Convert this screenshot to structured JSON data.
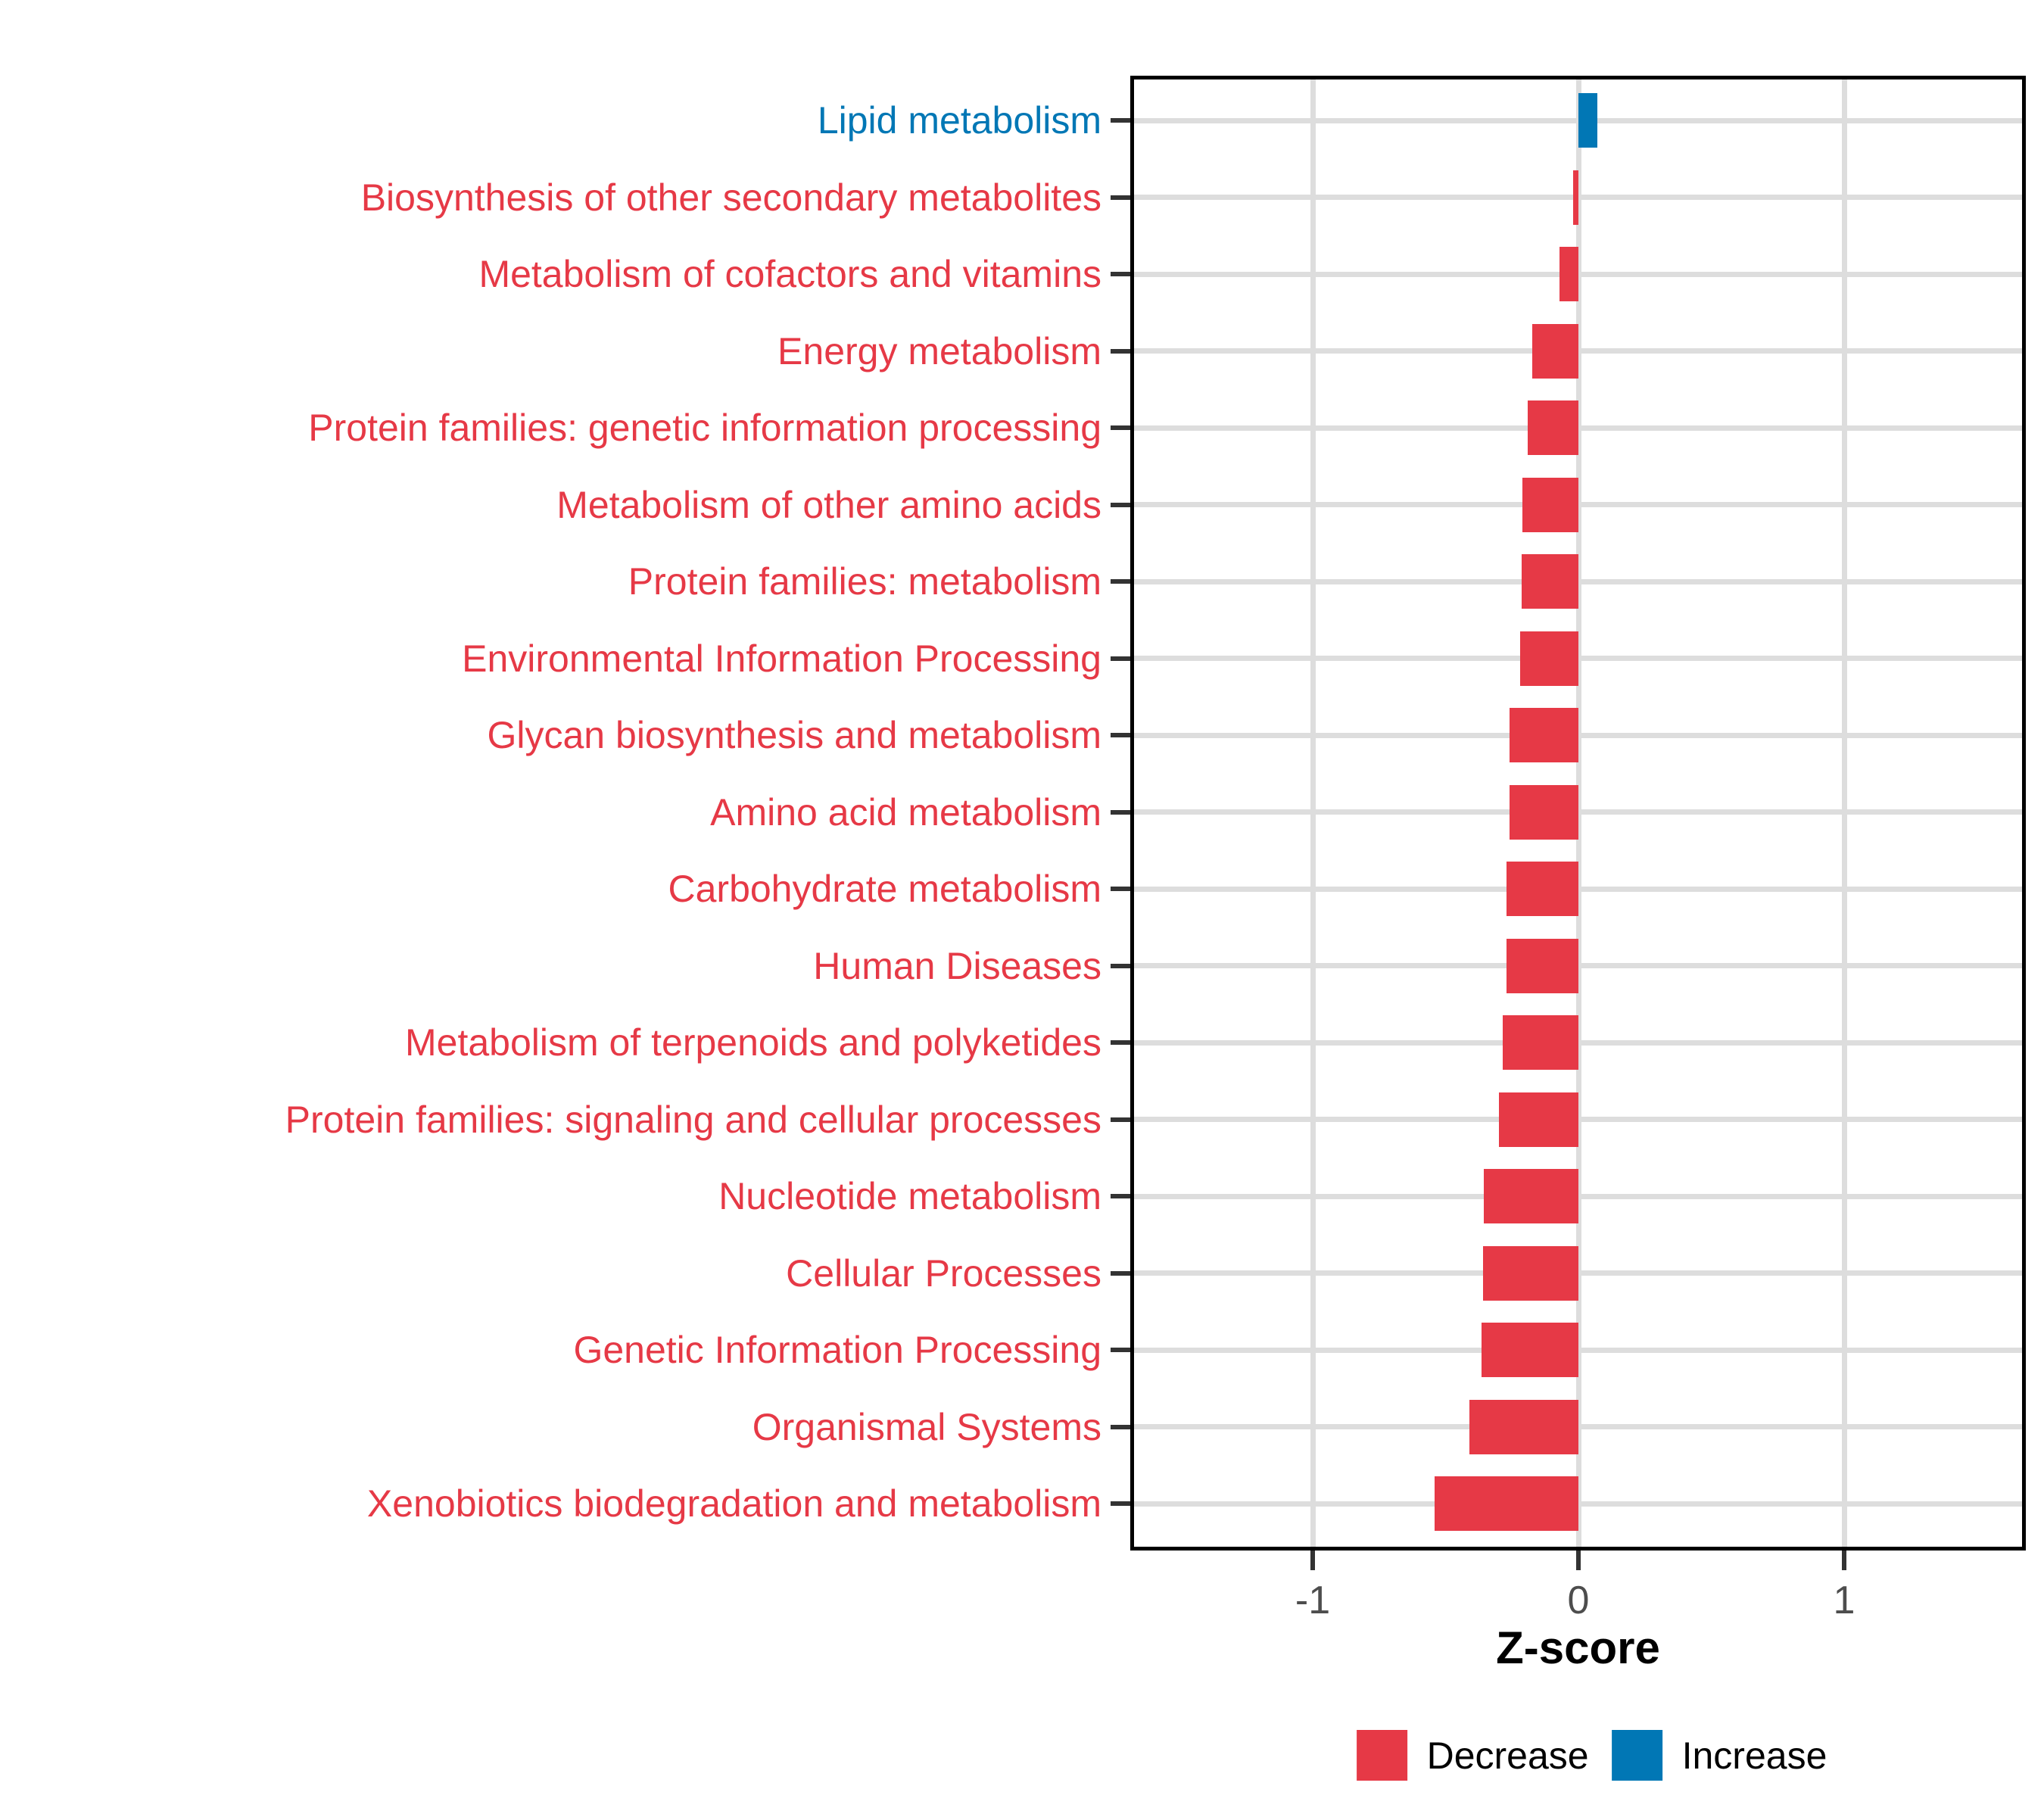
{
  "chart_data": {
    "type": "bar",
    "orientation": "horizontal",
    "title": "",
    "xlabel": "Z-score",
    "ylabel": "",
    "xlim": [
      -1.69,
      1.68
    ],
    "x_ticks": [
      -1,
      0,
      1
    ],
    "x_tick_labels": [
      "-1",
      "0",
      "1"
    ],
    "grid": "major-only",
    "legend_position": "bottom",
    "categories": [
      "Lipid metabolism",
      "Biosynthesis of other secondary metabolites",
      "Metabolism of cofactors and vitamins",
      "Energy metabolism",
      "Protein families: genetic information processing",
      "Metabolism of other amino acids",
      "Protein families: metabolism",
      "Environmental Information Processing",
      "Glycan biosynthesis and metabolism",
      "Amino acid metabolism",
      "Carbohydrate metabolism",
      "Human Diseases",
      "Metabolism of terpenoids and polyketides",
      "Protein families: signaling and cellular processes",
      "Nucleotide metabolism",
      "Cellular Processes",
      "Genetic Information Processing",
      "Organismal Systems",
      "Xenobiotics biodegradation and metabolism"
    ],
    "values": [
      0.07,
      -0.02,
      -0.07,
      -0.175,
      -0.19,
      -0.21,
      -0.215,
      -0.22,
      -0.26,
      -0.26,
      -0.27,
      -0.27,
      -0.285,
      -0.3,
      -0.355,
      -0.36,
      -0.365,
      -0.41,
      -0.54
    ],
    "directions": [
      "increase",
      "decrease",
      "decrease",
      "decrease",
      "decrease",
      "decrease",
      "decrease",
      "decrease",
      "decrease",
      "decrease",
      "decrease",
      "decrease",
      "decrease",
      "decrease",
      "decrease",
      "decrease",
      "decrease",
      "decrease",
      "decrease"
    ],
    "colors": {
      "decrease": "#E63946",
      "increase": "#0177B5",
      "grid": "#DDDDDD",
      "tick": "#333333",
      "axis_text": "#4D4D4D",
      "panel_border": "#000000"
    },
    "legend": [
      {
        "label": "Decrease",
        "color": "#E63946"
      },
      {
        "label": "Increase",
        "color": "#0177B5"
      }
    ]
  },
  "legend": {
    "decrease_label": "Decrease",
    "increase_label": "Increase"
  }
}
